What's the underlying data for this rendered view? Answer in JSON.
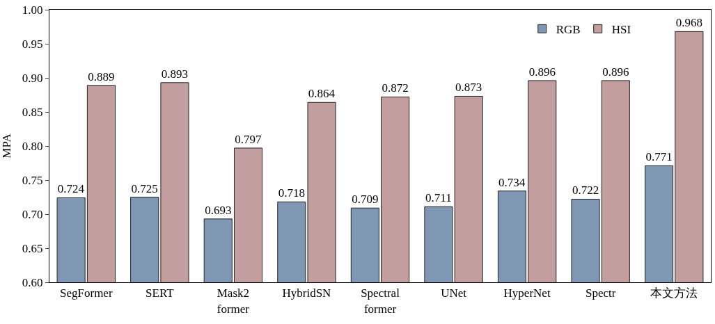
{
  "chart_data": {
    "type": "bar",
    "ylabel": "MPA",
    "categories": [
      "SegFormer",
      "SERT",
      "Mask2\nformer",
      "HybridSN",
      "Spectral\nformer",
      "UNet",
      "HyperNet",
      "Spectr",
      "本文方法"
    ],
    "series": [
      {
        "name": "RGB",
        "color": "#7f97b3",
        "values": [
          0.724,
          0.725,
          0.693,
          0.718,
          0.709,
          0.711,
          0.734,
          0.722,
          0.771
        ]
      },
      {
        "name": "HSI",
        "color": "#c39e9f",
        "values": [
          0.889,
          0.893,
          0.797,
          0.864,
          0.872,
          0.873,
          0.896,
          0.896,
          0.968
        ]
      }
    ],
    "ylim": [
      0.6,
      1.0
    ],
    "yticks": [
      "0.60",
      "0.65",
      "0.70",
      "0.75",
      "0.80",
      "0.85",
      "0.90",
      "0.95",
      "1.00"
    ],
    "data_labels": true,
    "legend": "top right"
  }
}
